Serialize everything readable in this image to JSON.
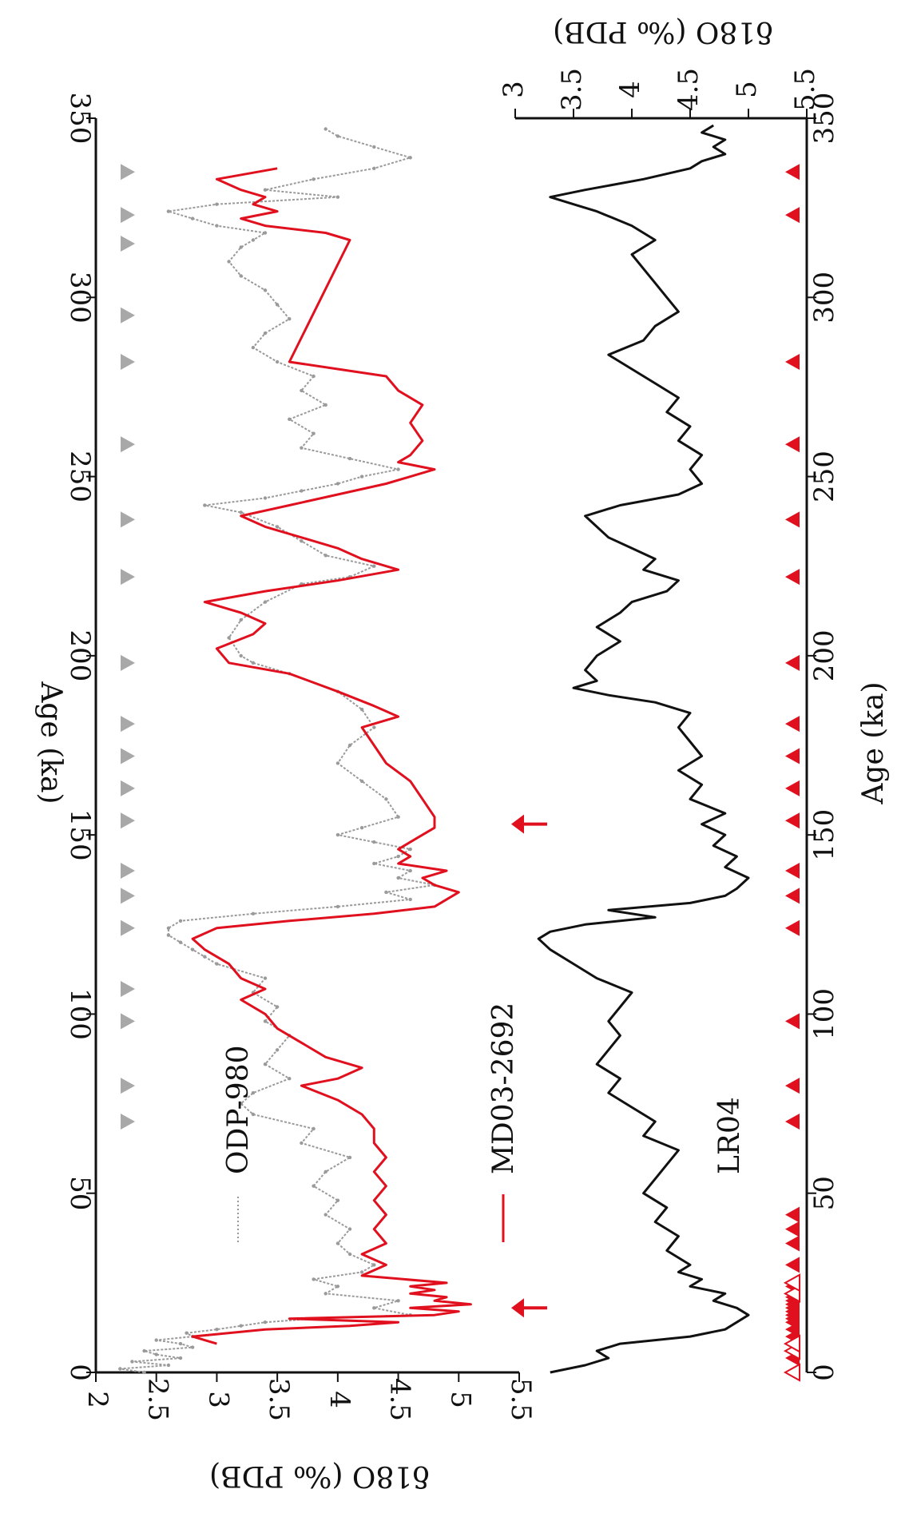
{
  "chart_data": [
    {
      "type": "line",
      "panel": "upper",
      "xlabel": "Age (ka)",
      "ylabel": "δ18O (‰ PDB)",
      "xlim": [
        0,
        350
      ],
      "ylim": [
        2,
        5.5
      ],
      "y_inverted": true,
      "x_ticks": [
        "0",
        "50",
        "100",
        "150",
        "200",
        "250",
        "300",
        "350"
      ],
      "y_ticks": [
        "2",
        "2.5",
        "3",
        "3.5",
        "4",
        "4.5",
        "5",
        "5.5"
      ],
      "x_tick_values": [
        0,
        50,
        100,
        150,
        200,
        250,
        300,
        350
      ],
      "y_tick_values": [
        2,
        2.5,
        3,
        3.5,
        4,
        4.5,
        5,
        5.5
      ],
      "series": [
        {
          "name": "ODP-980",
          "color": "#9a9a9a",
          "x": [
            0,
            1,
            2,
            3,
            4,
            5,
            6,
            7,
            8,
            9,
            10,
            11,
            12,
            13,
            14,
            15,
            16,
            18,
            20,
            22,
            24,
            26,
            28,
            30,
            33,
            36,
            40,
            44,
            48,
            52,
            56,
            60,
            64,
            68,
            72,
            75,
            78,
            82,
            86,
            90,
            94,
            98,
            102,
            106,
            110,
            114,
            116,
            118,
            120,
            122,
            124,
            126,
            128,
            130,
            132,
            134,
            136,
            138,
            140,
            142,
            144,
            146,
            148,
            150,
            152,
            155,
            160,
            165,
            170,
            175,
            180,
            185,
            190,
            195,
            198,
            200,
            205,
            210,
            215,
            220,
            222,
            225,
            228,
            232,
            236,
            240,
            242,
            244,
            246,
            248,
            250,
            252,
            255,
            258,
            262,
            266,
            270,
            274,
            278,
            282,
            286,
            290,
            294,
            298,
            302,
            306,
            310,
            314,
            316,
            318,
            320,
            322,
            324,
            326,
            328,
            330,
            333,
            336,
            339,
            342,
            345,
            347
          ],
          "y": [
            2.4,
            2.2,
            2.6,
            2.3,
            2.7,
            2.5,
            2.4,
            2.8,
            2.7,
            2.5,
            2.8,
            2.75,
            3.0,
            3.2,
            3.4,
            3.8,
            4.6,
            4.3,
            4.5,
            3.9,
            4.0,
            3.8,
            4.2,
            4.3,
            4.1,
            4.0,
            4.1,
            3.9,
            4.0,
            3.8,
            3.9,
            4.1,
            3.7,
            3.8,
            3.3,
            3.2,
            3.3,
            3.6,
            3.4,
            3.5,
            3.6,
            3.4,
            3.5,
            3.3,
            3.4,
            3.0,
            2.9,
            2.8,
            2.7,
            2.6,
            2.6,
            2.7,
            3.3,
            4.0,
            4.6,
            4.4,
            4.8,
            4.5,
            4.6,
            4.3,
            4.5,
            4.6,
            4.3,
            4.0,
            4.2,
            4.5,
            4.4,
            4.2,
            4.0,
            4.1,
            4.3,
            4.2,
            4.0,
            3.6,
            3.3,
            3.2,
            3.1,
            3.2,
            3.4,
            3.7,
            4.1,
            4.3,
            3.9,
            3.7,
            3.5,
            3.2,
            2.9,
            3.4,
            3.7,
            4.0,
            4.2,
            4.5,
            4.1,
            3.7,
            3.8,
            3.6,
            3.9,
            3.7,
            3.8,
            3.5,
            3.3,
            3.4,
            3.6,
            3.5,
            3.4,
            3.2,
            3.1,
            3.2,
            3.3,
            3.4,
            3.0,
            2.8,
            2.6,
            3.0,
            4.0,
            3.4,
            3.8,
            4.3,
            4.6,
            4.3,
            4.0,
            3.9
          ],
          "marker": "dotted"
        },
        {
          "name": "MD03-2692",
          "color": "#e0101e",
          "x": [
            8,
            10,
            12,
            13,
            14,
            15,
            16,
            17,
            18,
            19,
            20,
            21,
            22,
            23,
            24,
            25,
            27,
            30,
            33,
            36,
            40,
            44,
            48,
            52,
            56,
            60,
            64,
            68,
            72,
            76,
            80,
            82,
            85,
            88,
            92,
            96,
            100,
            104,
            107,
            110,
            114,
            118,
            121,
            124,
            126,
            128,
            130,
            132,
            134,
            136,
            138,
            140,
            142,
            144,
            146,
            148,
            150,
            152,
            155,
            160,
            165,
            170,
            175,
            180,
            183,
            186,
            190,
            195,
            198,
            202,
            206,
            209,
            212,
            215,
            218,
            221,
            224,
            227,
            230,
            233,
            236,
            239,
            242,
            245,
            248,
            250,
            252,
            254,
            256,
            260,
            265,
            270,
            274,
            278,
            280,
            282,
            316,
            318,
            320,
            322,
            324,
            326,
            328,
            330,
            333,
            336
          ],
          "y": [
            3.0,
            2.8,
            3.4,
            4.1,
            4.5,
            3.6,
            4.8,
            5.0,
            4.6,
            5.1,
            4.8,
            4.9,
            4.6,
            4.8,
            4.6,
            4.9,
            4.2,
            4.4,
            4.2,
            4.4,
            4.3,
            4.4,
            4.3,
            4.4,
            4.3,
            4.4,
            4.3,
            4.3,
            4.2,
            4.0,
            3.7,
            4.0,
            4.2,
            3.9,
            3.7,
            3.5,
            3.4,
            3.2,
            3.4,
            3.2,
            3.1,
            2.9,
            2.8,
            3.0,
            3.6,
            4.3,
            4.8,
            4.9,
            5.0,
            4.8,
            4.7,
            4.9,
            4.5,
            4.6,
            4.5,
            4.6,
            4.7,
            4.8,
            4.8,
            4.7,
            4.6,
            4.4,
            4.3,
            4.2,
            4.5,
            4.3,
            4.0,
            3.6,
            3.1,
            3.0,
            3.3,
            3.4,
            3.2,
            2.9,
            3.4,
            4.0,
            4.5,
            4.2,
            4.0,
            3.7,
            3.4,
            3.2,
            3.6,
            4.0,
            4.4,
            4.6,
            4.8,
            4.5,
            4.6,
            4.7,
            4.6,
            4.7,
            4.5,
            4.4,
            4.0,
            3.6,
            4.1,
            3.9,
            3.4,
            3.2,
            3.5,
            3.3,
            3.4,
            3.2,
            3.0,
            3.5
          ],
          "marker": "none"
        }
      ],
      "markers": {
        "gray_triangles_x": [
          70,
          80,
          98,
          107,
          124,
          133,
          140,
          154,
          163,
          172,
          181,
          198,
          222,
          238,
          259,
          282,
          295,
          315,
          323,
          335
        ],
        "red_arrows_x": [
          18,
          153
        ]
      }
    },
    {
      "type": "line",
      "panel": "lower",
      "xlabel": "Age (ka)",
      "ylabel": "δ18O (‰ PDB)",
      "xlim": [
        0,
        350
      ],
      "ylim": [
        3,
        5.5
      ],
      "y_inverted": true,
      "x_ticks": [
        "0",
        "50",
        "100",
        "150",
        "200",
        "250",
        "300",
        "350"
      ],
      "y_ticks": [
        "3",
        "3.5",
        "4",
        "4.5",
        "5",
        "5.5"
      ],
      "x_tick_values": [
        0,
        50,
        100,
        150,
        200,
        250,
        300,
        350
      ],
      "y_tick_values": [
        3,
        3.5,
        4,
        4.5,
        5,
        5.5
      ],
      "series": [
        {
          "name": "LR04",
          "color": "#111111",
          "x": [
            0,
            2,
            4,
            6,
            8,
            10,
            12,
            14,
            16,
            18,
            20,
            22,
            24,
            26,
            28,
            30,
            34,
            38,
            42,
            46,
            50,
            54,
            58,
            62,
            66,
            70,
            74,
            78,
            82,
            86,
            90,
            94,
            98,
            102,
            106,
            110,
            114,
            118,
            121,
            123,
            125,
            127,
            129,
            131,
            133,
            135,
            138,
            141,
            144,
            147,
            150,
            153,
            156,
            160,
            164,
            168,
            172,
            176,
            180,
            184,
            187,
            189,
            191,
            193,
            196,
            200,
            204,
            208,
            212,
            215,
            218,
            221,
            224,
            227,
            230,
            233,
            236,
            239,
            242,
            245,
            248,
            252,
            256,
            260,
            264,
            268,
            272,
            276,
            280,
            284,
            288,
            292,
            296,
            300,
            304,
            308,
            312,
            316,
            320,
            324,
            326,
            328,
            330,
            333,
            336,
            338,
            340,
            342,
            344,
            346,
            348
          ],
          "y": [
            3.3,
            3.6,
            3.8,
            3.7,
            3.9,
            4.5,
            4.8,
            4.9,
            5.0,
            4.9,
            4.7,
            4.8,
            4.5,
            4.6,
            4.4,
            4.5,
            4.3,
            4.4,
            4.2,
            4.3,
            4.1,
            4.2,
            4.3,
            4.4,
            4.1,
            4.2,
            4.0,
            3.8,
            3.9,
            3.7,
            3.8,
            3.9,
            3.8,
            3.9,
            4.0,
            3.7,
            3.5,
            3.3,
            3.2,
            3.3,
            3.6,
            4.2,
            3.8,
            4.5,
            4.8,
            4.9,
            5.0,
            4.8,
            4.9,
            4.7,
            4.8,
            4.6,
            4.8,
            4.5,
            4.6,
            4.4,
            4.6,
            4.5,
            4.4,
            4.5,
            4.2,
            3.8,
            3.5,
            3.7,
            3.6,
            3.7,
            3.9,
            3.7,
            3.9,
            4.0,
            4.3,
            4.4,
            4.1,
            4.2,
            4.0,
            3.8,
            3.7,
            3.6,
            3.9,
            4.4,
            4.6,
            4.5,
            4.6,
            4.4,
            4.5,
            4.3,
            4.4,
            4.2,
            4.0,
            3.8,
            4.1,
            4.2,
            4.4,
            4.3,
            4.2,
            4.1,
            4.0,
            4.2,
            4.0,
            3.7,
            3.5,
            3.3,
            3.6,
            4.1,
            4.5,
            4.6,
            4.8,
            4.7,
            4.8,
            4.6,
            4.7
          ],
          "marker": "none"
        }
      ],
      "markers": {
        "red_triangles_x": [
          4,
          8,
          10,
          12,
          14,
          15,
          16,
          17,
          18,
          19,
          20,
          21,
          22,
          24,
          30,
          36,
          40,
          44,
          70,
          80,
          98,
          124,
          133,
          140,
          154,
          163,
          172,
          181,
          198,
          222,
          238,
          259,
          282,
          323,
          335
        ],
        "open_triangles_x": [
          0,
          6,
          8,
          22,
          25
        ]
      }
    }
  ]
}
